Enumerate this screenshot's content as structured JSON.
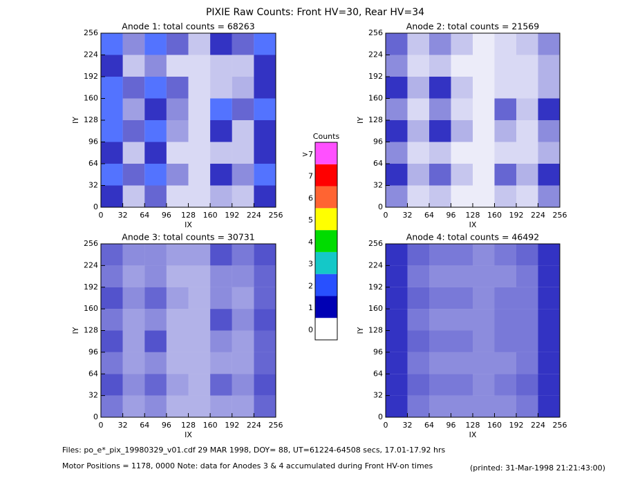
{
  "title": "PIXIE Raw Counts:  Front HV=30, Rear HV=34",
  "colorbar": {
    "title": "Counts",
    "levels": [
      {
        "label": "0",
        "color": "#ffffff"
      },
      {
        "label": "1",
        "color": "#0000b4"
      },
      {
        "label": "2",
        "color": "#2850ff"
      },
      {
        "label": "3",
        "color": "#14c8c8"
      },
      {
        "label": "4",
        "color": "#00dc00"
      },
      {
        "label": "5",
        "color": "#ffff00"
      },
      {
        "label": "6",
        "color": "#ff6432"
      },
      {
        "label": "7",
        "color": "#ff0000"
      },
      {
        "label": ">7",
        "color": "#ff50ff"
      }
    ]
  },
  "footer": {
    "files": "Files: po_e*_pix_19980329_v01.cdf    29 MAR 1998, DOY= 88, UT=61224-64508 secs, 17.01-17.92 hrs",
    "motor": "Motor Positions = 1178, 0000   Note: data for Anodes 3 & 4 accumulated during Front HV-on times",
    "printed": "(printed: 31-Mar-1998 21:21:43:00)"
  },
  "chart_data": [
    {
      "type": "heatmap",
      "title": "Anode 1: total counts = 68263",
      "xlabel": "IX",
      "ylabel": "IY",
      "xlim": [
        0,
        256
      ],
      "ylim": [
        0,
        256
      ],
      "xticks": [
        0,
        32,
        64,
        96,
        128,
        160,
        192,
        224,
        256
      ],
      "yticks": [
        0,
        32,
        64,
        96,
        128,
        160,
        192,
        224,
        256
      ],
      "values": [
        [
          2.5,
          0.6,
          2.2,
          0.8,
          0.3,
          1.5,
          0.8,
          2.0
        ],
        [
          1.5,
          0.3,
          0.6,
          0.2,
          0.2,
          0.3,
          0.3,
          1.0
        ],
        [
          2.5,
          0.8,
          2.5,
          0.8,
          0.2,
          0.3,
          0.4,
          1.0
        ],
        [
          2.0,
          0.5,
          1.8,
          0.6,
          0.2,
          2.0,
          0.8,
          2.5
        ],
        [
          2.5,
          0.8,
          2.5,
          0.5,
          0.2,
          1.0,
          0.3,
          1.5
        ],
        [
          1.5,
          0.3,
          1.0,
          0.2,
          0.2,
          0.3,
          0.3,
          1.0
        ],
        [
          2.5,
          0.8,
          2.2,
          0.6,
          0.2,
          1.8,
          0.6,
          2.2
        ],
        [
          1.5,
          0.3,
          0.8,
          0.2,
          0.2,
          0.4,
          0.3,
          1.0
        ]
      ]
    },
    {
      "type": "heatmap",
      "title": "Anode 2: total counts = 21569",
      "xlabel": "IX",
      "ylabel": "IY",
      "xlim": [
        0,
        256
      ],
      "ylim": [
        0,
        256
      ],
      "xticks": [
        0,
        32,
        64,
        96,
        128,
        160,
        192,
        224,
        256
      ],
      "yticks": [
        0,
        32,
        64,
        96,
        128,
        160,
        192,
        224,
        256
      ],
      "values": [
        [
          0.8,
          0.3,
          0.6,
          0.3,
          0.1,
          0.2,
          0.3,
          0.6
        ],
        [
          0.6,
          0.2,
          0.3,
          0.1,
          0.1,
          0.2,
          0.2,
          0.4
        ],
        [
          1.0,
          0.4,
          1.0,
          0.3,
          0.1,
          0.2,
          0.2,
          0.4
        ],
        [
          0.6,
          0.2,
          0.6,
          0.2,
          0.1,
          0.8,
          0.3,
          1.0
        ],
        [
          1.0,
          0.4,
          1.0,
          0.4,
          0.1,
          0.4,
          0.2,
          0.6
        ],
        [
          0.6,
          0.2,
          0.3,
          0.1,
          0.1,
          0.2,
          0.2,
          0.4
        ],
        [
          1.0,
          0.4,
          0.8,
          0.3,
          0.1,
          0.8,
          0.4,
          1.0
        ],
        [
          0.6,
          0.2,
          0.3,
          0.1,
          0.1,
          0.3,
          0.2,
          0.6
        ]
      ]
    },
    {
      "type": "heatmap",
      "title": "Anode 3: total counts = 30731",
      "xlabel": "IX",
      "ylabel": "IY",
      "xlim": [
        0,
        256
      ],
      "ylim": [
        0,
        256
      ],
      "xticks": [
        0,
        32,
        64,
        96,
        128,
        160,
        192,
        224,
        256
      ],
      "yticks": [
        0,
        32,
        64,
        96,
        128,
        160,
        192,
        224,
        256
      ],
      "values": [
        [
          0.8,
          0.6,
          0.6,
          0.5,
          0.5,
          0.9,
          0.7,
          0.9
        ],
        [
          0.7,
          0.5,
          0.6,
          0.4,
          0.4,
          0.6,
          0.6,
          0.8
        ],
        [
          0.9,
          0.6,
          0.8,
          0.5,
          0.4,
          0.6,
          0.5,
          0.8
        ],
        [
          0.7,
          0.5,
          0.6,
          0.4,
          0.4,
          0.9,
          0.6,
          0.9
        ],
        [
          0.9,
          0.5,
          0.9,
          0.4,
          0.4,
          0.6,
          0.5,
          0.8
        ],
        [
          0.7,
          0.5,
          0.6,
          0.4,
          0.4,
          0.5,
          0.5,
          0.8
        ],
        [
          0.9,
          0.6,
          0.8,
          0.5,
          0.4,
          0.8,
          0.6,
          0.9
        ],
        [
          0.7,
          0.5,
          0.6,
          0.4,
          0.4,
          0.5,
          0.5,
          0.8
        ]
      ]
    },
    {
      "type": "heatmap",
      "title": "Anode 4: total counts = 46492",
      "xlabel": "IX",
      "ylabel": "IY",
      "xlim": [
        0,
        256
      ],
      "ylim": [
        0,
        256
      ],
      "xticks": [
        0,
        32,
        64,
        96,
        128,
        160,
        192,
        224,
        256
      ],
      "yticks": [
        0,
        32,
        64,
        96,
        128,
        160,
        192,
        224,
        256
      ],
      "values": [
        [
          1.2,
          0.8,
          0.7,
          0.7,
          0.6,
          0.7,
          0.8,
          1.6
        ],
        [
          1.1,
          0.7,
          0.6,
          0.6,
          0.6,
          0.6,
          0.7,
          1.5
        ],
        [
          1.2,
          0.8,
          0.7,
          0.7,
          0.6,
          0.7,
          0.7,
          1.6
        ],
        [
          1.1,
          0.7,
          0.6,
          0.6,
          0.6,
          0.7,
          0.7,
          1.5
        ],
        [
          1.2,
          0.8,
          0.7,
          0.7,
          0.6,
          0.7,
          0.7,
          1.6
        ],
        [
          1.1,
          0.7,
          0.6,
          0.6,
          0.6,
          0.6,
          0.7,
          1.5
        ],
        [
          1.3,
          0.8,
          0.7,
          0.7,
          0.6,
          0.7,
          0.8,
          1.6
        ],
        [
          1.1,
          0.7,
          0.6,
          0.6,
          0.6,
          0.6,
          0.7,
          1.5
        ]
      ]
    }
  ]
}
